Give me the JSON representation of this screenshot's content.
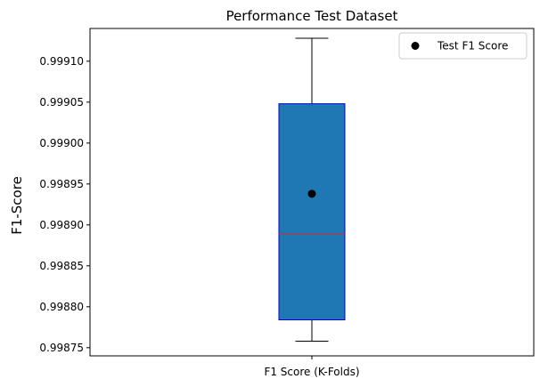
{
  "chart_data": {
    "type": "box",
    "title": "Performance Test Dataset",
    "xlabel": "",
    "ylabel": "F1-Score",
    "categories": [
      "F1 Score (K-Folds)"
    ],
    "ylim": [
      0.99874,
      0.99914
    ],
    "yticks": [
      "0.99875",
      "0.99880",
      "0.99885",
      "0.99890",
      "0.99895",
      "0.99900",
      "0.99905",
      "0.99910"
    ],
    "box": {
      "whisker_low": 0.998758,
      "q1": 0.998784,
      "median": 0.998889,
      "q3": 0.999048,
      "whisker_high": 0.999128
    },
    "points": [
      {
        "name": "Test F1 Score",
        "category": "F1 Score (K-Folds)",
        "value": 0.998938
      }
    ],
    "legend": {
      "position": "upper-right",
      "entries": [
        {
          "label": "Test F1 Score"
        }
      ]
    },
    "grid": false,
    "colors": {
      "box_fill": "#1f77b4",
      "box_edge": "#0000cd",
      "median": "#d62728",
      "whisker": "#000000",
      "point": "#000000"
    }
  }
}
